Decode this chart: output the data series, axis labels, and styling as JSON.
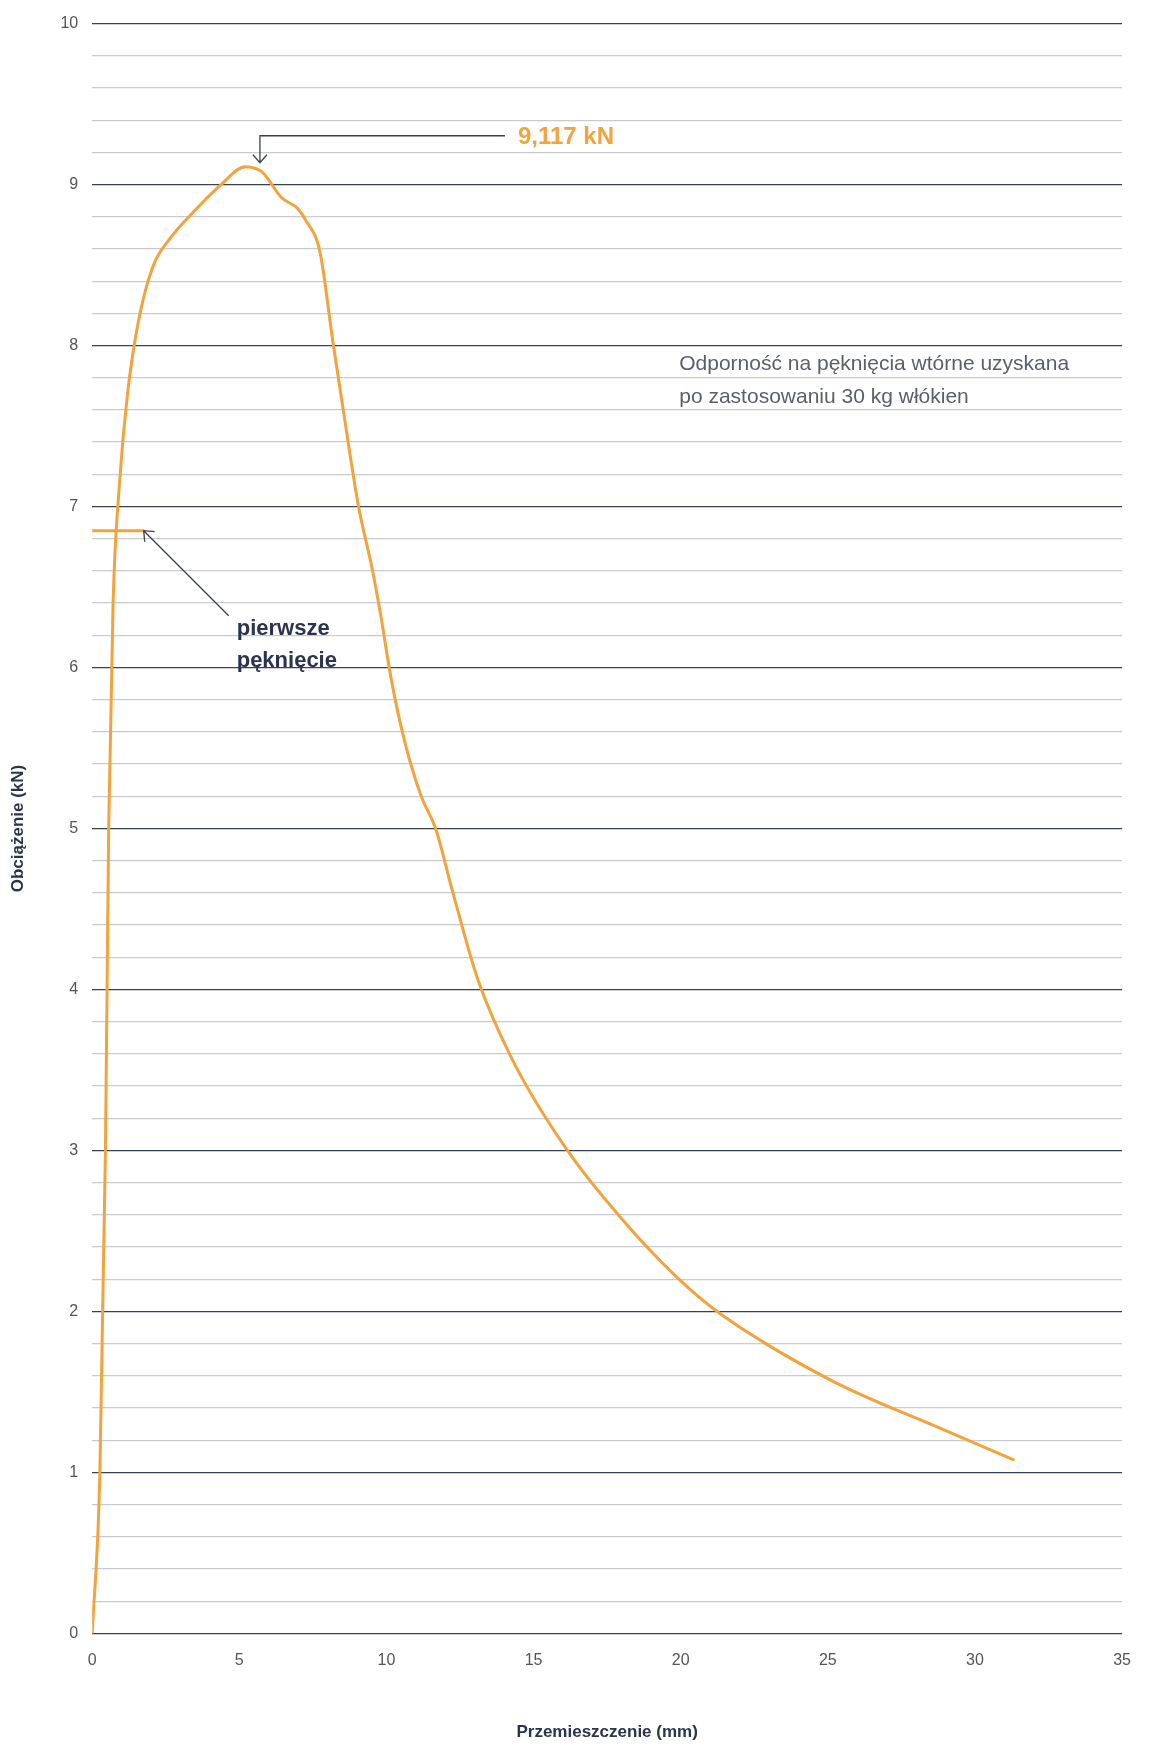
{
  "chart_data": {
    "type": "line",
    "xlabel": "Przemieszczenie (mm)",
    "ylabel": "Obciążenie (kN)",
    "xlim": [
      0,
      35
    ],
    "xticks": [
      0,
      5,
      10,
      15,
      20,
      25,
      30,
      35
    ],
    "ylim": [
      0,
      10
    ],
    "yticks": [
      0,
      {
        "value": 0.2,
        "label": null
      },
      {
        "value": 0.4,
        "label": null
      },
      {
        "value": 0.6,
        "label": null
      },
      {
        "value": 0.8,
        "label": null
      },
      1,
      {
        "value": 1.2,
        "label": null
      },
      {
        "value": 1.4,
        "label": null
      },
      {
        "value": 1.6,
        "label": null
      },
      {
        "value": 1.8,
        "label": null
      },
      2,
      {
        "value": 2.2,
        "label": null
      },
      {
        "value": 2.4,
        "label": null
      },
      {
        "value": 2.6,
        "label": null
      },
      {
        "value": 2.8,
        "label": null
      },
      3,
      {
        "value": 3.2,
        "label": null
      },
      {
        "value": 3.4,
        "label": null
      },
      {
        "value": 3.6,
        "label": null
      },
      {
        "value": 3.8,
        "label": null
      },
      4,
      {
        "value": 4.2,
        "label": null
      },
      {
        "value": 4.4,
        "label": null
      },
      {
        "value": 4.6,
        "label": null
      },
      {
        "value": 4.8,
        "label": null
      },
      5,
      {
        "value": 5.2,
        "label": null
      },
      {
        "value": 5.4,
        "label": null
      },
      {
        "value": 5.6,
        "label": null
      },
      {
        "value": 5.8,
        "label": null
      },
      6,
      {
        "value": 6.2,
        "label": null
      },
      {
        "value": 6.4,
        "label": null
      },
      {
        "value": 6.6,
        "label": null
      },
      {
        "value": 6.8,
        "label": null
      },
      7,
      {
        "value": 7.2,
        "label": null
      },
      {
        "value": 7.4,
        "label": null
      },
      {
        "value": 7.6,
        "label": null
      },
      {
        "value": 7.8,
        "label": null
      },
      8,
      {
        "value": 8.2,
        "label": null
      },
      {
        "value": 8.4,
        "label": null
      },
      {
        "value": 8.6,
        "label": null
      },
      {
        "value": 8.8,
        "label": null
      },
      9,
      {
        "value": 9.2,
        "label": null
      },
      {
        "value": 9.4,
        "label": null
      },
      {
        "value": 9.6,
        "label": null
      },
      {
        "value": 9.8,
        "label": null
      },
      10
    ],
    "grid": "y",
    "legend": false,
    "marker": "none",
    "line_style": "solid",
    "series": [
      {
        "color": "#f4a23c",
        "x": [
          0,
          0.26,
          0.45,
          0.56,
          0.71,
          0.93,
          1.2,
          1.57,
          2.06,
          2.62,
          3.44,
          4.38,
          5.2,
          5.76,
          6.43,
          6.99,
          7.25,
          7.74,
          8.19,
          8.79,
          9.05,
          9.53,
          9.79,
          10.17,
          10.62,
          11.18,
          11.67,
          12.23,
          13.09,
          14.29,
          16.15,
          18.02,
          20.0,
          21.39,
          25.13,
          28.87,
          31.3
        ],
        "values": [
          0,
          0.99,
          3.0,
          5.0,
          6.4,
          7.15,
          7.7,
          8.15,
          8.49,
          8.66,
          8.83,
          9.0,
          9.11,
          9.08,
          8.92,
          8.85,
          8.78,
          8.58,
          8.01,
          7.29,
          7.0,
          6.6,
          6.34,
          5.92,
          5.54,
          5.2,
          5.0,
          4.62,
          4.07,
          3.56,
          3.0,
          2.57,
          2.19,
          1.98,
          1.57,
          1.27,
          1.08
        ]
      },
      {
        "color": "#f4a23c",
        "x": [
          0,
          1.75
        ],
        "values": [
          6.85,
          6.85
        ]
      }
    ],
    "annotations": [
      {
        "text": "9,117 kN",
        "x": 5.7,
        "y": 9.117
      },
      {
        "text": "pierwsze pęknięcie",
        "x": 1.75,
        "y": 6.85
      },
      "Odporność na pęknięcia wtórne uzyskana po zastosowaniu 30 kg włókien"
    ]
  }
}
